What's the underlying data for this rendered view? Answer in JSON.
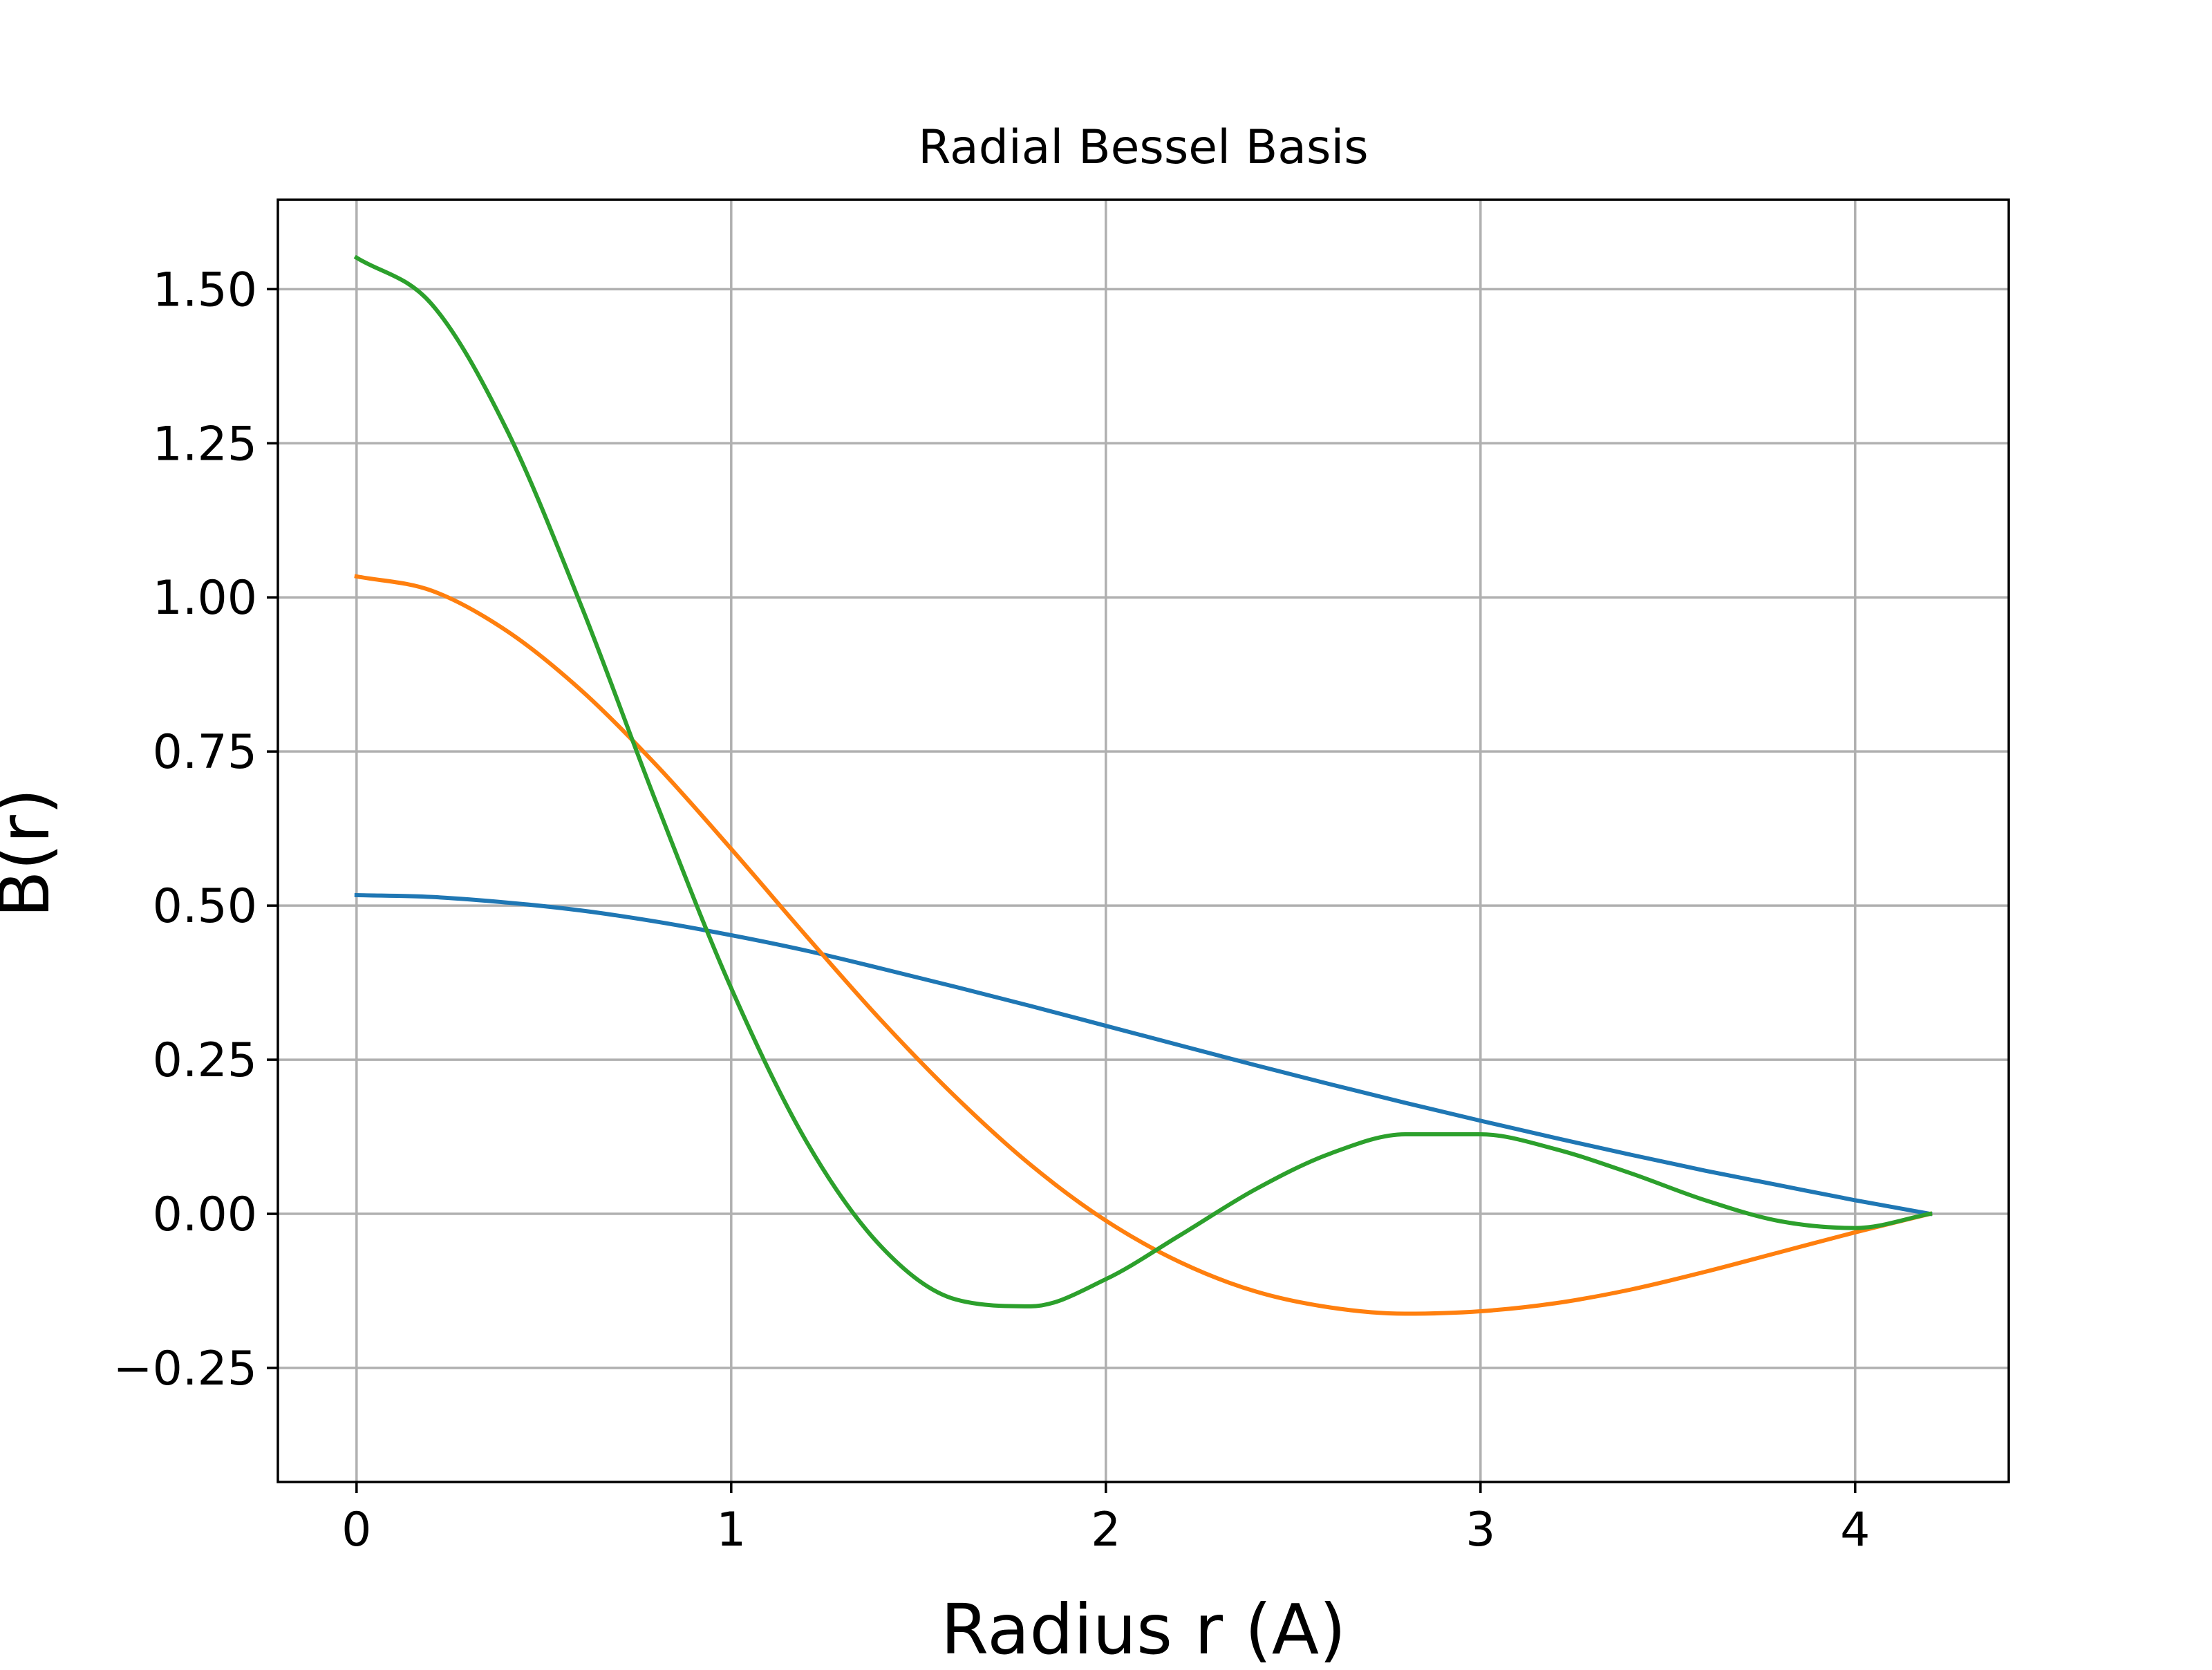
{
  "chart_data": {
    "type": "line",
    "title": "Radial Bessel Basis",
    "xlabel": "Radius r (A)",
    "ylabel": "B(r)",
    "xlim": [
      -0.21,
      4.41
    ],
    "ylim": [
      -0.435,
      1.645
    ],
    "grid": true,
    "legend": "none",
    "x_ticks": [
      {
        "value": 0,
        "label": "0"
      },
      {
        "value": 1,
        "label": "1"
      },
      {
        "value": 2,
        "label": "2"
      },
      {
        "value": 3,
        "label": "3"
      },
      {
        "value": 4,
        "label": "4"
      }
    ],
    "y_ticks": [
      {
        "value": -0.25,
        "label": "−0.25"
      },
      {
        "value": 0.0,
        "label": "0.00"
      },
      {
        "value": 0.25,
        "label": "0.25"
      },
      {
        "value": 0.5,
        "label": "0.50"
      },
      {
        "value": 0.75,
        "label": "0.75"
      },
      {
        "value": 1.0,
        "label": "1.00"
      },
      {
        "value": 1.25,
        "label": "1.25"
      },
      {
        "value": 1.5,
        "label": "1.50"
      }
    ],
    "series": [
      {
        "color": "#1f77b4",
        "x": [
          0.0,
          0.2,
          0.4,
          0.6,
          0.8,
          1.0,
          1.2,
          1.4,
          1.6,
          1.8,
          2.0,
          2.2,
          2.4,
          2.6,
          2.8,
          3.0,
          3.2,
          3.4,
          3.6,
          3.8,
          4.0,
          4.2
        ],
        "y": [
          0.517,
          0.514,
          0.505,
          0.492,
          0.474,
          0.452,
          0.427,
          0.398,
          0.368,
          0.337,
          0.305,
          0.273,
          0.241,
          0.21,
          0.18,
          0.151,
          0.123,
          0.096,
          0.07,
          0.046,
          0.022,
          0.0
        ]
      },
      {
        "color": "#ff7f0e",
        "x": [
          0.0,
          0.2,
          0.4,
          0.6,
          0.8,
          1.0,
          1.2,
          1.4,
          1.6,
          1.8,
          2.0,
          2.2,
          2.4,
          2.6,
          2.8,
          3.0,
          3.2,
          3.4,
          3.6,
          3.8,
          4.0,
          4.2
        ],
        "y": [
          1.034,
          1.011,
          0.946,
          0.849,
          0.728,
          0.592,
          0.451,
          0.314,
          0.189,
          0.079,
          -0.011,
          -0.079,
          -0.126,
          -0.152,
          -0.162,
          -0.158,
          -0.145,
          -0.123,
          -0.094,
          -0.062,
          -0.03,
          0.0
        ]
      },
      {
        "color": "#2ca02c",
        "x": [
          0.0,
          0.2,
          0.4,
          0.6,
          0.8,
          1.0,
          1.2,
          1.4,
          1.6,
          1.8,
          2.0,
          2.2,
          2.4,
          2.6,
          2.8,
          3.0,
          3.2,
          3.4,
          3.6,
          3.8,
          4.0,
          4.2
        ],
        "y": [
          1.551,
          1.476,
          1.273,
          0.986,
          0.667,
          0.366,
          0.118,
          -0.053,
          -0.139,
          -0.15,
          -0.106,
          -0.034,
          0.04,
          0.098,
          0.129,
          0.129,
          0.105,
          0.066,
          0.022,
          -0.012,
          -0.023,
          0.0
        ]
      }
    ]
  }
}
